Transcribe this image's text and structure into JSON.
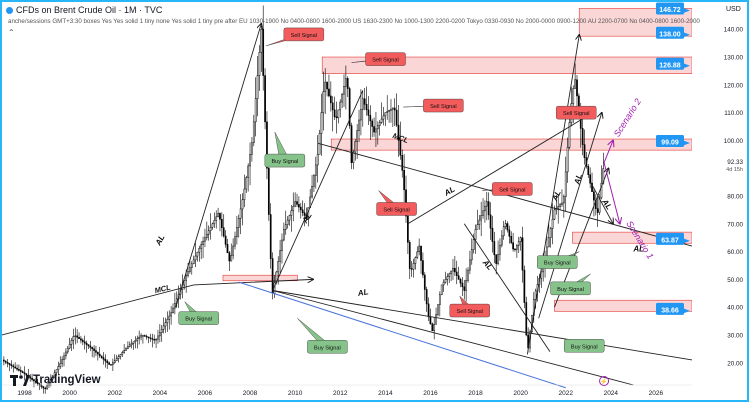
{
  "header": {
    "title": "CFDs on Brent Crude Oil · 1M · TVC",
    "studies": "anche/sessions GMT+3:30 boxes Yes Yes solid 1 tiny none Yes solid 1 tiny pre after EU 1030-1900 No 0400-0800 1600-2000 US 1630-2300 No 1000-1300 2200-0200 Tokyo 0330-0930 No 2000-0000 0900-1200 AU 2200-0700 No 0400-0800 1600-2000",
    "expand": "⌃"
  },
  "currency": "USD",
  "brand": {
    "name": "TradingView",
    "logo_text": "TV"
  },
  "colors": {
    "up_candle": "#ffffff",
    "down_candle": "#000000",
    "zone_fill": "#f8c8ca",
    "zone_border": "#e53935",
    "sell_label": "#f25c5c",
    "buy_label": "#86c38a",
    "price_tag": "#2196f3",
    "scenario": "#a020b0",
    "regression_line": "#4a73d9",
    "frame": "#29b6f6"
  },
  "chart_data": {
    "type": "candlestick",
    "instrument": "Brent Crude Oil",
    "interval": "1M",
    "x_ticks": [
      "1998",
      "2000",
      "2002",
      "2004",
      "2006",
      "2008",
      "2010",
      "2012",
      "2014",
      "2016",
      "2018",
      "2020",
      "2022",
      "2024",
      "2026"
    ],
    "y_ticks": [
      20.0,
      30.0,
      40.0,
      50.0,
      60.0,
      70.0,
      80.0,
      92.33,
      100.0,
      110.0,
      120.0,
      130.0,
      140.0
    ],
    "y_range": [
      12,
      148
    ],
    "x_range": [
      1997,
      2027.6
    ],
    "last_price": "92.33",
    "countdown": "4d 15h",
    "price_tags": [
      "146.72",
      "138.00",
      "126.88",
      "99.09",
      "63.87",
      "38.66"
    ],
    "price_path": [
      {
        "x": 1997,
        "y": 21
      },
      {
        "x": 1998,
        "y": 16
      },
      {
        "x": 1998.9,
        "y": 10.5
      },
      {
        "x": 1999.6,
        "y": 20
      },
      {
        "x": 2000.2,
        "y": 30
      },
      {
        "x": 2001,
        "y": 25
      },
      {
        "x": 2001.8,
        "y": 19
      },
      {
        "x": 2002.6,
        "y": 26
      },
      {
        "x": 2003.2,
        "y": 30
      },
      {
        "x": 2003.8,
        "y": 28
      },
      {
        "x": 2004.5,
        "y": 38
      },
      {
        "x": 2005.2,
        "y": 52
      },
      {
        "x": 2005.8,
        "y": 62
      },
      {
        "x": 2006.6,
        "y": 74
      },
      {
        "x": 2007.1,
        "y": 56
      },
      {
        "x": 2007.7,
        "y": 80
      },
      {
        "x": 2008.1,
        "y": 100
      },
      {
        "x": 2008.5,
        "y": 140
      },
      {
        "x": 2008.9,
        "y": 60
      },
      {
        "x": 2009,
        "y": 45
      },
      {
        "x": 2009.5,
        "y": 68
      },
      {
        "x": 2010,
        "y": 78
      },
      {
        "x": 2010.5,
        "y": 72
      },
      {
        "x": 2011,
        "y": 95
      },
      {
        "x": 2011.3,
        "y": 122
      },
      {
        "x": 2011.8,
        "y": 107
      },
      {
        "x": 2012.3,
        "y": 124
      },
      {
        "x": 2012.5,
        "y": 92
      },
      {
        "x": 2013,
        "y": 115
      },
      {
        "x": 2013.5,
        "y": 103
      },
      {
        "x": 2014,
        "y": 110
      },
      {
        "x": 2014.4,
        "y": 112
      },
      {
        "x": 2014.8,
        "y": 86
      },
      {
        "x": 2015.1,
        "y": 52
      },
      {
        "x": 2015.5,
        "y": 62
      },
      {
        "x": 2015.9,
        "y": 37
      },
      {
        "x": 2016.1,
        "y": 31
      },
      {
        "x": 2016.5,
        "y": 48
      },
      {
        "x": 2017,
        "y": 54
      },
      {
        "x": 2017.5,
        "y": 46
      },
      {
        "x": 2018,
        "y": 68
      },
      {
        "x": 2018.5,
        "y": 78
      },
      {
        "x": 2018.9,
        "y": 55
      },
      {
        "x": 2019.3,
        "y": 71
      },
      {
        "x": 2019.7,
        "y": 60
      },
      {
        "x": 2020,
        "y": 65
      },
      {
        "x": 2020.3,
        "y": 23
      },
      {
        "x": 2020.6,
        "y": 44
      },
      {
        "x": 2021,
        "y": 55
      },
      {
        "x": 2021.5,
        "y": 75
      },
      {
        "x": 2021.9,
        "y": 78
      },
      {
        "x": 2022.2,
        "y": 110
      },
      {
        "x": 2022.4,
        "y": 123
      },
      {
        "x": 2022.8,
        "y": 95
      },
      {
        "x": 2023.1,
        "y": 84
      },
      {
        "x": 2023.4,
        "y": 73
      },
      {
        "x": 2023.7,
        "y": 92
      }
    ],
    "zones": [
      {
        "y_low": 124,
        "y_high": 130,
        "x_from": 2011.2,
        "x_to": "right-edge"
      },
      {
        "y_low": 96.5,
        "y_high": 100.5,
        "x_from": 2011.6,
        "x_to": "right-edge"
      },
      {
        "y_low": 137.5,
        "y_high": 147.5,
        "x_from": 2022.6,
        "x_to": "right-edge"
      },
      {
        "y_low": 49.5,
        "y_high": 51.5,
        "x_from": 2006.8,
        "x_to": 2010.1
      },
      {
        "y_low": 63,
        "y_high": 67,
        "x_from": 2022.3,
        "x_to": "right-edge"
      },
      {
        "y_low": 38.5,
        "y_high": 42.5,
        "x_from": 2021.5,
        "x_to": "right-edge"
      }
    ],
    "trend_lines": [
      {
        "points": [
          [
            1997,
            30
          ],
          [
            2005.5,
            48
          ],
          [
            2010.8,
            50
          ]
        ],
        "label": "MCL",
        "arrow": true
      },
      {
        "points": [
          [
            2004.7,
            40
          ],
          [
            2008.5,
            142
          ]
        ],
        "label": "AL",
        "arrow": true
      },
      {
        "points": [
          [
            2009,
            46
          ],
          [
            2013,
            118
          ]
        ],
        "label": "AL"
      },
      {
        "points": [
          [
            2011,
            99
          ],
          [
            2027.6,
            62
          ]
        ],
        "label": "MCL"
      },
      {
        "points": [
          [
            2015,
            70
          ],
          [
            2022.8,
            108
          ]
        ],
        "label": "AL"
      },
      {
        "points": [
          [
            2009,
            46
          ],
          [
            2027.6,
            21
          ]
        ],
        "label": "AL"
      },
      {
        "points": [
          [
            2007.5,
            49
          ],
          [
            2022,
            11
          ]
        ],
        "label": "",
        "style": "regression-blue"
      },
      {
        "points": [
          [
            2009,
            46
          ],
          [
            2025,
            12
          ]
        ],
        "label": ""
      },
      {
        "points": [
          [
            2017.5,
            70
          ],
          [
            2021.3,
            24
          ]
        ],
        "label": "AL"
      },
      {
        "points": [
          [
            2020.3,
            23
          ],
          [
            2022.6,
            138
          ]
        ],
        "label": "",
        "arrow": true
      },
      {
        "points": [
          [
            2020.8,
            36
          ],
          [
            2023.6,
            110
          ]
        ],
        "label": "",
        "arrow": true
      },
      {
        "points": [
          [
            2021.5,
            40
          ],
          [
            2023.9,
            90
          ]
        ],
        "label": "",
        "arrow": true
      },
      {
        "points": [
          [
            2023.1,
            85
          ],
          [
            2024.1,
            70
          ]
        ],
        "label": "AL",
        "arrow": true
      }
    ],
    "scenarios": [
      {
        "label": "Scenario 2",
        "from": [
          2023.7,
          92
        ],
        "to": [
          2024.1,
          100
        ]
      },
      {
        "label": "Scenario 1",
        "from": [
          2023.7,
          92
        ],
        "to": [
          2024.4,
          70
        ]
      }
    ],
    "sell_signals": [
      {
        "label": "Sell Signal",
        "at": [
          2008.7,
          134
        ]
      },
      {
        "label": "Sell Signal",
        "at": [
          2012.5,
          128
        ]
      },
      {
        "label": "Sell Signal",
        "at": [
          2014.8,
          112
        ]
      },
      {
        "label": "Sell Signal",
        "at": [
          2013.7,
          82
        ]
      },
      {
        "label": "Sell Signal",
        "at": [
          2018.3,
          82
        ]
      },
      {
        "label": "Sell Signal",
        "at": [
          2017.3,
          44
        ]
      },
      {
        "label": "Sell Signal",
        "at": [
          2022.2,
          108
        ]
      }
    ],
    "buy_signals": [
      {
        "label": "Buy Signal",
        "at": [
          2009.1,
          103
        ]
      },
      {
        "label": "Buy Signal",
        "at": [
          2005.1,
          42
        ]
      },
      {
        "label": "Buy Signal",
        "at": [
          2010.1,
          36
        ]
      },
      {
        "label": "Buy Signal",
        "at": [
          2022.6,
          60
        ]
      },
      {
        "label": "Buy Signal",
        "at": [
          2023.1,
          52
        ]
      },
      {
        "label": "Buy Signal",
        "at": [
          2022.2,
          27
        ]
      }
    ],
    "line_labels": [
      "AL",
      "MCL",
      "AL",
      "AL",
      "MCL",
      "AL",
      "AL",
      "AL",
      "AL",
      "AL",
      "AL",
      "AL"
    ]
  }
}
